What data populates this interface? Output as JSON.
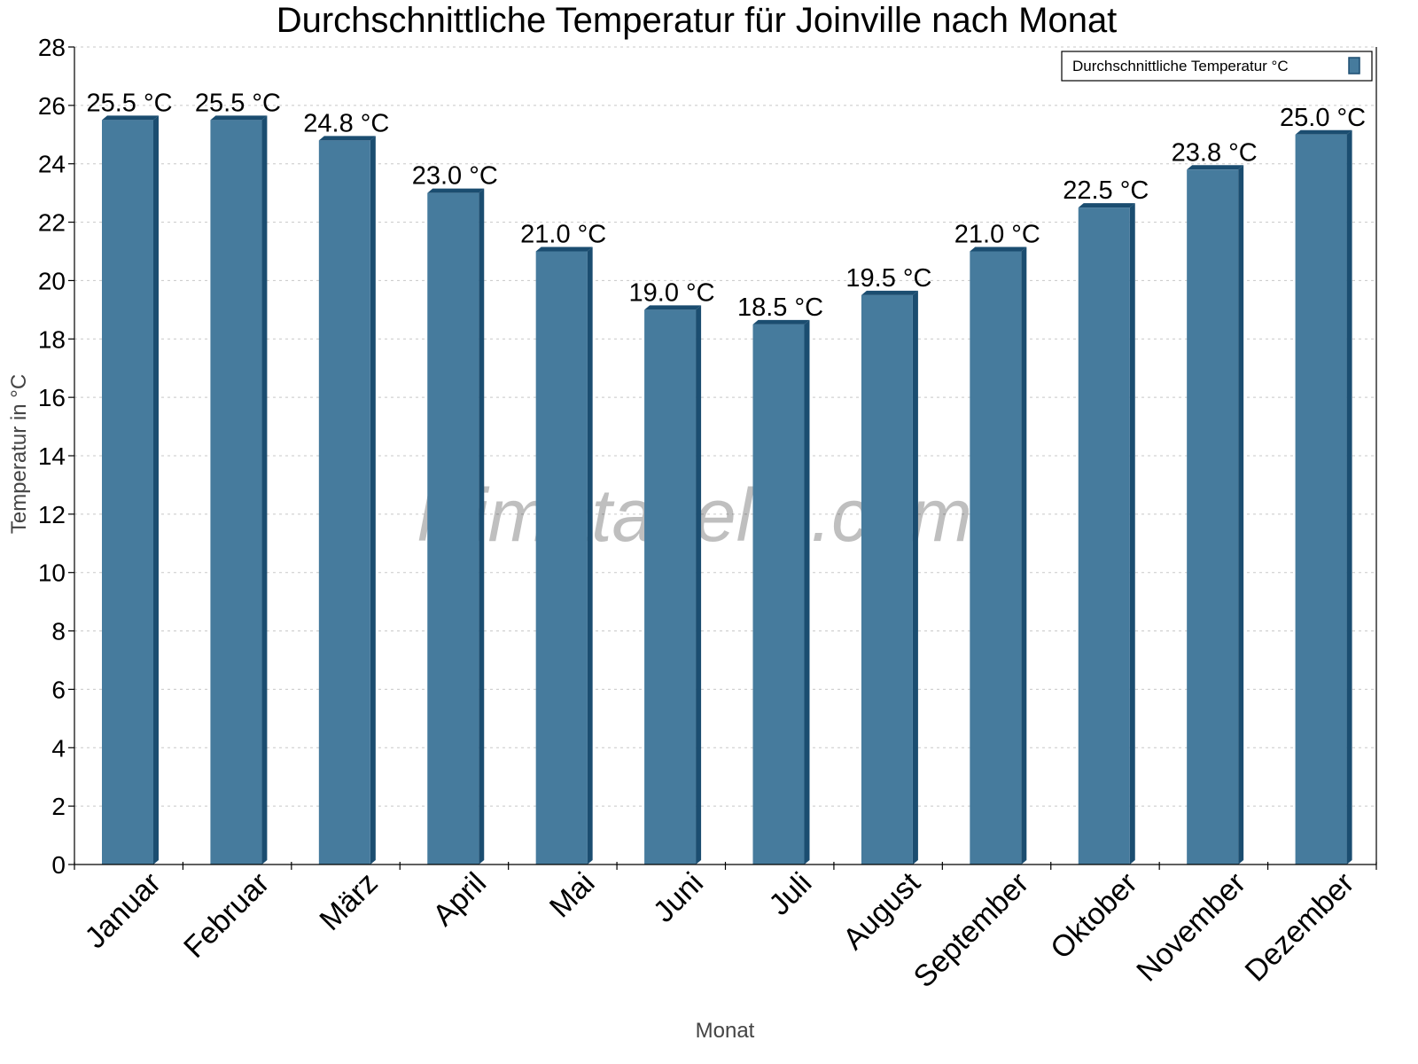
{
  "chart_data": {
    "type": "bar",
    "title": "Durchschnittliche Temperatur für Joinville nach Monat",
    "xlabel": "Monat",
    "ylabel": "Temperatur in °C",
    "categories": [
      "Januar",
      "Februar",
      "März",
      "April",
      "Mai",
      "Juni",
      "Juli",
      "August",
      "September",
      "Oktober",
      "November",
      "Dezember"
    ],
    "series": [
      {
        "name": "Durchschnittliche Temperatur °C",
        "values": [
          25.5,
          25.5,
          24.8,
          23.0,
          21.0,
          19.0,
          18.5,
          19.5,
          21.0,
          22.5,
          23.8,
          25.0
        ],
        "data_labels": [
          "25.5 °C",
          "25.5 °C",
          "24.8 °C",
          "23.0 °C",
          "21.0 °C",
          "19.0 °C",
          "18.5 °C",
          "19.5 °C",
          "21.0 °C",
          "22.5 °C",
          "23.8 °C",
          "25.0 °C"
        ]
      }
    ],
    "ylim": [
      0,
      28
    ],
    "yticks": [
      0,
      2,
      4,
      6,
      8,
      10,
      12,
      14,
      16,
      18,
      20,
      22,
      24,
      26,
      28
    ],
    "grid": true,
    "legend_position": "top-right",
    "watermark": "klimatabelle.com",
    "colors": {
      "bar_front": "#467b9d",
      "bar_side": "#1b4d70",
      "grid": "#c8c8c8"
    }
  }
}
